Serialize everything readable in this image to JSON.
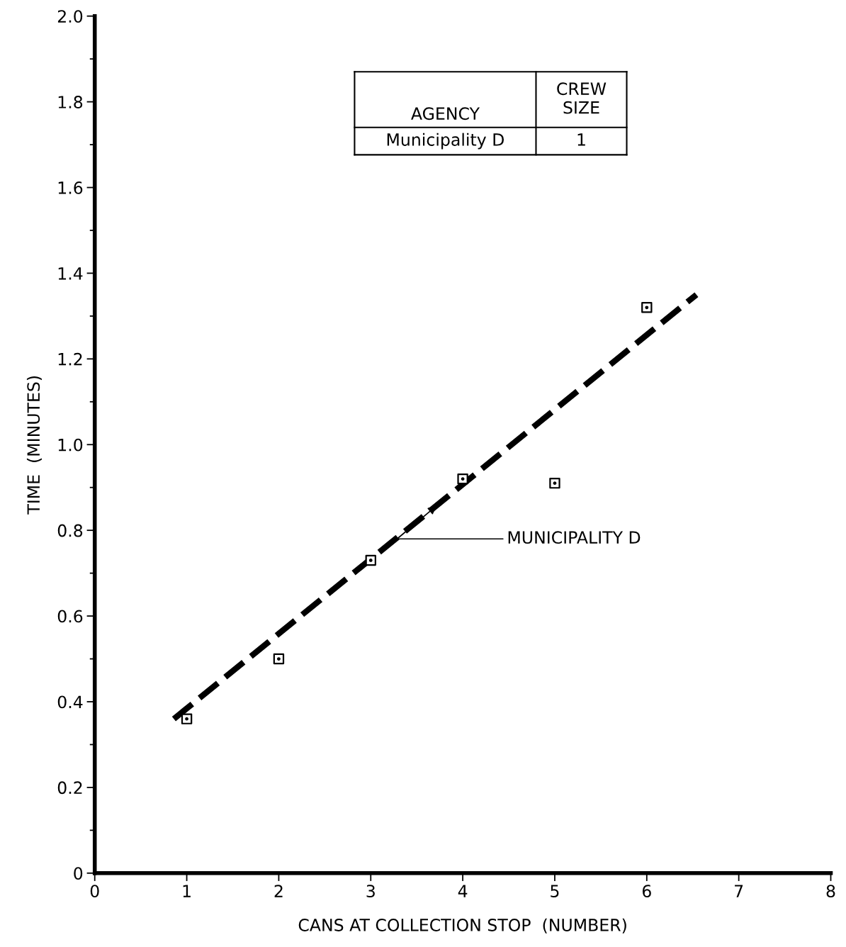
{
  "chart_data": {
    "type": "scatter",
    "xlabel": "CANS AT COLLECTION STOP  (NUMBER)",
    "ylabel": "TIME  (MINUTES)",
    "series": [
      {
        "marker": "square",
        "color": "#000000",
        "x": [
          1,
          2,
          3,
          4,
          5,
          6
        ],
        "values": [
          0.36,
          0.5,
          0.73,
          0.92,
          0.91,
          1.32
        ]
      },
      {
        "type": "line",
        "line_style": "dashed",
        "color": "#000000",
        "x": [
          0.86,
          6.54
        ],
        "values": [
          0.36,
          1.35
        ]
      }
    ],
    "annotations": [
      "AGENCY",
      "CREW\nSIZE",
      "Municipality D",
      "1",
      {
        "text": "MUNICIPALITY D",
        "x": 3.73,
        "y": 0.86
      }
    ],
    "xlim": [
      0,
      8
    ],
    "ylim": [
      0,
      2.0
    ],
    "xticks": [
      0,
      1,
      2,
      3,
      4,
      5,
      6,
      7,
      8
    ],
    "yticks": [
      0,
      0.2,
      0.4,
      0.6,
      0.8,
      {
        "value": 1,
        "label": "1.0"
      },
      1.2,
      1.4,
      1.6,
      1.8,
      {
        "value": 2,
        "label": "2.0"
      }
    ],
    "grid": false
  }
}
